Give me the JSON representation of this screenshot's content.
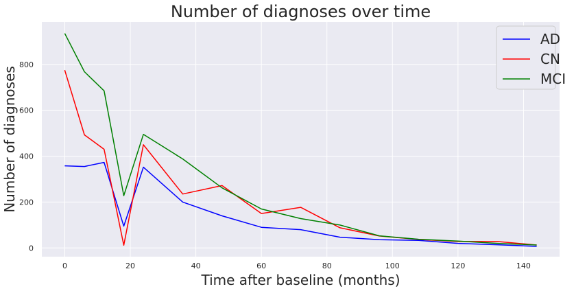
{
  "chart_data": {
    "type": "line",
    "title": "Number of diagnoses over time",
    "xlabel": "Time after baseline (months)",
    "ylabel": "Number of diagnoses",
    "xlim": [
      -7,
      151
    ],
    "ylim": [
      -38,
      985
    ],
    "xticks": [
      0,
      20,
      40,
      60,
      80,
      100,
      120,
      140
    ],
    "yticks": [
      0,
      200,
      400,
      600,
      800
    ],
    "grid": true,
    "legend_position": "top-right",
    "series": [
      {
        "name": "AD",
        "color": "#0000ff",
        "x": [
          0,
          6,
          12,
          18,
          24,
          36,
          48,
          60,
          72,
          84,
          96,
          108,
          120,
          132,
          144
        ],
        "y": [
          358,
          355,
          373,
          95,
          352,
          200,
          140,
          90,
          80,
          47,
          36,
          33,
          20,
          14,
          7
        ]
      },
      {
        "name": "CN",
        "color": "#ff0000",
        "x": [
          0,
          6,
          12,
          18,
          24,
          36,
          48,
          60,
          72,
          84,
          96,
          108,
          120,
          132,
          144
        ],
        "y": [
          775,
          493,
          430,
          12,
          450,
          235,
          272,
          150,
          177,
          88,
          52,
          37,
          28,
          28,
          13
        ]
      },
      {
        "name": "MCI",
        "color": "#008000",
        "x": [
          0,
          6,
          12,
          18,
          24,
          36,
          48,
          60,
          72,
          84,
          96,
          108,
          120,
          132,
          144
        ],
        "y": [
          935,
          768,
          685,
          228,
          495,
          388,
          262,
          170,
          128,
          100,
          53,
          38,
          30,
          20,
          13
        ]
      }
    ]
  }
}
